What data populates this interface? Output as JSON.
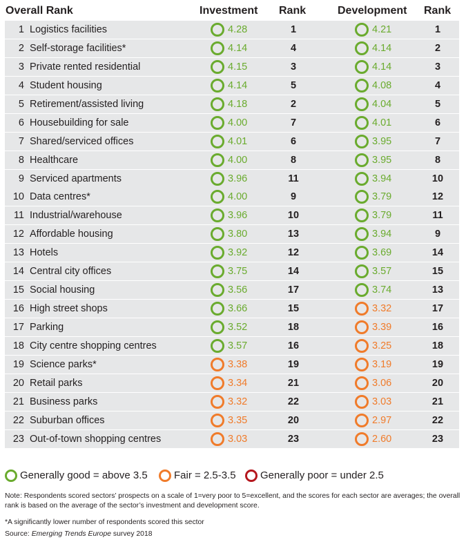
{
  "header": {
    "overall_rank": "Overall Rank",
    "investment": "Investment",
    "rank_investment": "Rank",
    "development": "Development",
    "rank_development": "Rank"
  },
  "colors": {
    "good": "#6aab2e",
    "fair": "#f07b2a",
    "poor": "#b5171e",
    "row_bg": "#e6e7e8"
  },
  "rows": [
    {
      "num": "1",
      "name": "Logistics facilities",
      "inv": "4.28",
      "inv_rank": "1",
      "dev": "4.21",
      "dev_rank": "1"
    },
    {
      "num": "2",
      "name": "Self-storage facilities*",
      "inv": "4.14",
      "inv_rank": "4",
      "dev": "4.14",
      "dev_rank": "2"
    },
    {
      "num": "3",
      "name": "Private rented residential",
      "inv": "4.15",
      "inv_rank": "3",
      "dev": "4.14",
      "dev_rank": "3"
    },
    {
      "num": "4",
      "name": "Student housing",
      "inv": "4.14",
      "inv_rank": "5",
      "dev": "4.08",
      "dev_rank": "4"
    },
    {
      "num": "5",
      "name": "Retirement/assisted living",
      "inv": "4.18",
      "inv_rank": "2",
      "dev": "4.04",
      "dev_rank": "5"
    },
    {
      "num": "6",
      "name": "Housebuilding for sale",
      "inv": "4.00",
      "inv_rank": "7",
      "dev": "4.01",
      "dev_rank": "6"
    },
    {
      "num": "7",
      "name": "Shared/serviced offices",
      "inv": "4.01",
      "inv_rank": "6",
      "dev": "3.95",
      "dev_rank": "7"
    },
    {
      "num": "8",
      "name": "Healthcare",
      "inv": "4.00",
      "inv_rank": "8",
      "dev": "3.95",
      "dev_rank": "8"
    },
    {
      "num": "9",
      "name": "Serviced apartments",
      "inv": "3.96",
      "inv_rank": "11",
      "dev": "3.94",
      "dev_rank": "10"
    },
    {
      "num": "10",
      "name": "Data centres*",
      "inv": "4.00",
      "inv_rank": "9",
      "dev": "3.79",
      "dev_rank": "12"
    },
    {
      "num": "11",
      "name": "Industrial/warehouse",
      "inv": "3.96",
      "inv_rank": "10",
      "dev": "3.79",
      "dev_rank": "11"
    },
    {
      "num": "12",
      "name": "Affordable housing",
      "inv": "3.80",
      "inv_rank": "13",
      "dev": "3.94",
      "dev_rank": "9"
    },
    {
      "num": "13",
      "name": "Hotels",
      "inv": "3.92",
      "inv_rank": "12",
      "dev": "3.69",
      "dev_rank": "14"
    },
    {
      "num": "14",
      "name": "Central city offices",
      "inv": "3.75",
      "inv_rank": "14",
      "dev": "3.57",
      "dev_rank": "15"
    },
    {
      "num": "15",
      "name": "Social housing",
      "inv": "3.56",
      "inv_rank": "17",
      "dev": "3.74",
      "dev_rank": "13"
    },
    {
      "num": "16",
      "name": "High street shops",
      "inv": "3.66",
      "inv_rank": "15",
      "dev": "3.32",
      "dev_rank": "17"
    },
    {
      "num": "17",
      "name": "Parking",
      "inv": "3.52",
      "inv_rank": "18",
      "dev": "3.39",
      "dev_rank": "16"
    },
    {
      "num": "18",
      "name": "City centre shopping centres",
      "inv": "3.57",
      "inv_rank": "16",
      "dev": "3.25",
      "dev_rank": "18"
    },
    {
      "num": "19",
      "name": "Science parks*",
      "inv": "3.38",
      "inv_rank": "19",
      "dev": "3.19",
      "dev_rank": "19"
    },
    {
      "num": "20",
      "name": "Retail parks",
      "inv": "3.34",
      "inv_rank": "21",
      "dev": "3.06",
      "dev_rank": "20"
    },
    {
      "num": "21",
      "name": "Business parks",
      "inv": "3.32",
      "inv_rank": "22",
      "dev": "3.03",
      "dev_rank": "21"
    },
    {
      "num": "22",
      "name": "Suburban offices",
      "inv": "3.35",
      "inv_rank": "20",
      "dev": "2.97",
      "dev_rank": "22"
    },
    {
      "num": "23",
      "name": "Out-of-town shopping centres",
      "inv": "3.03",
      "inv_rank": "23",
      "dev": "2.60",
      "dev_rank": "23"
    }
  ],
  "legend": {
    "good": "Generally good = above 3.5",
    "fair": "Fair = 2.5-3.5",
    "poor": "Generally poor = under 2.5"
  },
  "notes": {
    "note": "Note: Respondents scored sectors’ prospects on a scale of 1=very poor to 5=excellent, and the scores for each sector are averages; the overall rank is based on the average of the sector’s investment and development score.",
    "asterisk": "*A significantly lower number of respondents scored this sector",
    "source_prefix": "Source: ",
    "source_title": "Emerging Trends Europe",
    "source_suffix": " survey 2018"
  }
}
